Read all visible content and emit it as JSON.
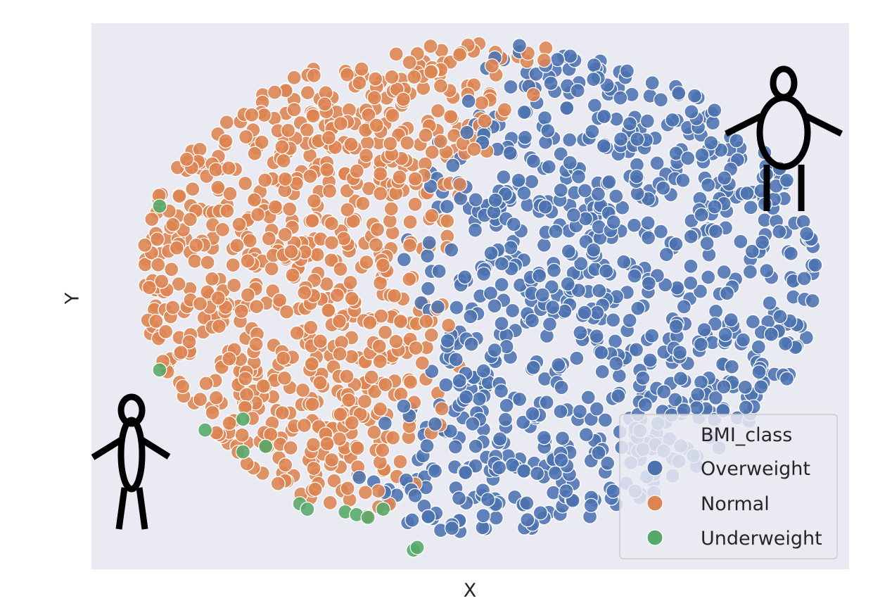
{
  "chart_data": {
    "type": "scatter",
    "title": "",
    "xlabel": "X",
    "ylabel": "Y",
    "xlim": [
      -1.0,
      1.0
    ],
    "ylim": [
      -1.0,
      1.0
    ],
    "ticks_shown": false,
    "grid": false,
    "background": "#eaeaf2",
    "legend": {
      "title": "BMI_class",
      "placement": "lower-right",
      "entries": [
        "Overweight",
        "Normal",
        "Underweight"
      ]
    },
    "colors": {
      "Overweight": "#4c72b0",
      "Normal": "#dd8452",
      "Underweight": "#55a868"
    },
    "series": [
      {
        "name": "Overweight",
        "count": 880,
        "regions": [
          [
            -0.7,
            0.4
          ],
          [
            -0.4,
            0.1
          ],
          [
            0.35,
            0.95
          ],
          [
            0.5,
            0.7
          ],
          [
            0.6,
            -0.2
          ],
          [
            0.85,
            -0.05
          ]
        ]
      },
      {
        "name": "Normal",
        "count": 800,
        "regions": [
          [
            -0.78,
            0.55
          ],
          [
            -0.5,
            0.2
          ],
          [
            -0.3,
            -0.6
          ],
          [
            0.1,
            -0.4
          ]
        ]
      },
      {
        "name": "Underweight",
        "count": 14,
        "points": [
          [
            -0.82,
            0.33
          ],
          [
            -0.82,
            -0.27
          ],
          [
            -0.7,
            -0.49
          ],
          [
            -0.6,
            -0.45
          ],
          [
            -0.6,
            -0.57
          ],
          [
            -0.54,
            -0.55
          ],
          [
            -0.45,
            -0.76
          ],
          [
            -0.43,
            -0.78
          ],
          [
            -0.33,
            -0.79
          ],
          [
            -0.3,
            -0.8
          ],
          [
            -0.27,
            -0.81
          ],
          [
            -0.23,
            -0.78
          ],
          [
            -0.15,
            -0.93
          ],
          [
            -0.14,
            -0.92
          ]
        ]
      }
    ],
    "annotations": {
      "left_figure": "thin-person-icon",
      "right_figure": "heavy-person-icon"
    }
  }
}
